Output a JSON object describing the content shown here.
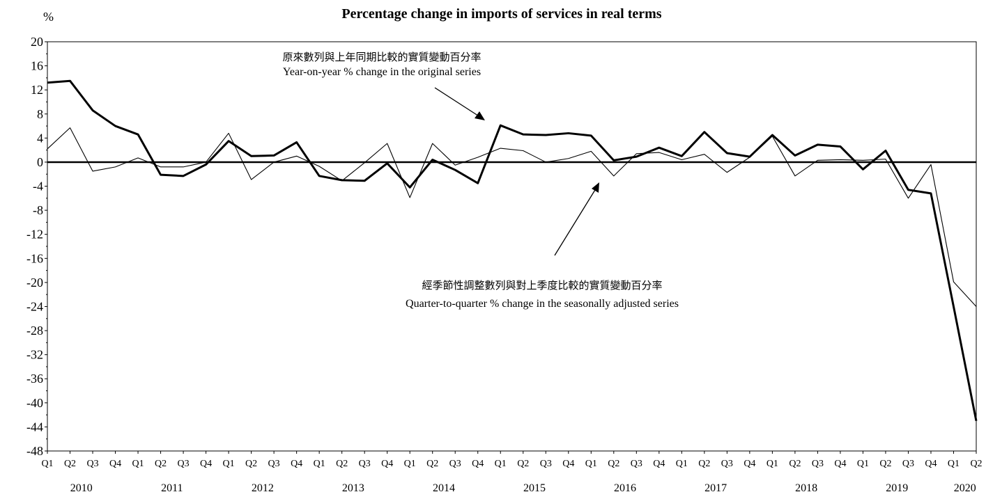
{
  "chart_data": {
    "type": "line",
    "title": "Percentage change in imports of services in real terms",
    "unit_label": "%",
    "ylim": [
      -48,
      20
    ],
    "yticks": [
      20,
      16,
      12,
      8,
      4,
      0,
      -4,
      -8,
      -12,
      -16,
      -20,
      -24,
      -28,
      -32,
      -36,
      -40,
      -44,
      -48
    ],
    "quarters": [
      "Q1",
      "Q2",
      "Q3",
      "Q4",
      "Q1",
      "Q2",
      "Q3",
      "Q4",
      "Q1",
      "Q2",
      "Q3",
      "Q4",
      "Q1",
      "Q2",
      "Q3",
      "Q4",
      "Q1",
      "Q2",
      "Q3",
      "Q4",
      "Q1",
      "Q2",
      "Q3",
      "Q4",
      "Q1",
      "Q2",
      "Q3",
      "Q4",
      "Q1",
      "Q2",
      "Q3",
      "Q4",
      "Q1",
      "Q2",
      "Q3",
      "Q4",
      "Q1",
      "Q2",
      "Q3",
      "Q4",
      "Q1",
      "Q2"
    ],
    "years": [
      "2010",
      "2011",
      "2012",
      "2013",
      "2014",
      "2015",
      "2016",
      "2017",
      "2018",
      "2019",
      "2020"
    ],
    "series": [
      {
        "style": "thick",
        "values": [
          13.2,
          13.5,
          8.6,
          6.0,
          4.6,
          -2.1,
          -2.3,
          -0.4,
          3.5,
          1.0,
          1.1,
          3.3,
          -2.3,
          -3.0,
          -3.1,
          -0.2,
          -4.2,
          0.4,
          -1.3,
          -3.5,
          6.1,
          4.6,
          4.5,
          4.8,
          4.4,
          0.3,
          0.9,
          2.4,
          1.0,
          5.0,
          1.5,
          0.9,
          4.5,
          1.1,
          2.9,
          2.6,
          -1.2,
          1.9,
          -4.6,
          -5.2,
          -24.0,
          -43.0
        ]
      },
      {
        "style": "thin",
        "values": [
          2.2,
          5.7,
          -1.5,
          -0.8,
          0.7,
          -0.8,
          -0.8,
          0.0,
          4.8,
          -2.9,
          0.0,
          1.0,
          -0.7,
          -3.1,
          -0.1,
          3.1,
          -5.9,
          3.1,
          -0.5,
          0.8,
          2.3,
          1.9,
          0.0,
          0.6,
          1.8,
          -2.3,
          1.4,
          1.6,
          0.4,
          1.3,
          -1.7,
          0.8,
          4.3,
          -2.3,
          0.3,
          0.4,
          0.3,
          0.5,
          -6.0,
          -0.4,
          -19.9,
          -24.0
        ]
      }
    ],
    "annotations": {
      "yoy_zh": "原來數列與上年同期比較的實質變動百分率",
      "yoy_en": "Year-on-year % change in the original series",
      "qoq_zh": "經季節性調整數列與對上季度比較的實質變動百分率",
      "qoq_en": "Quarter-to-quarter % change in the seasonally adjusted series"
    },
    "grid": false,
    "legend": "none"
  }
}
